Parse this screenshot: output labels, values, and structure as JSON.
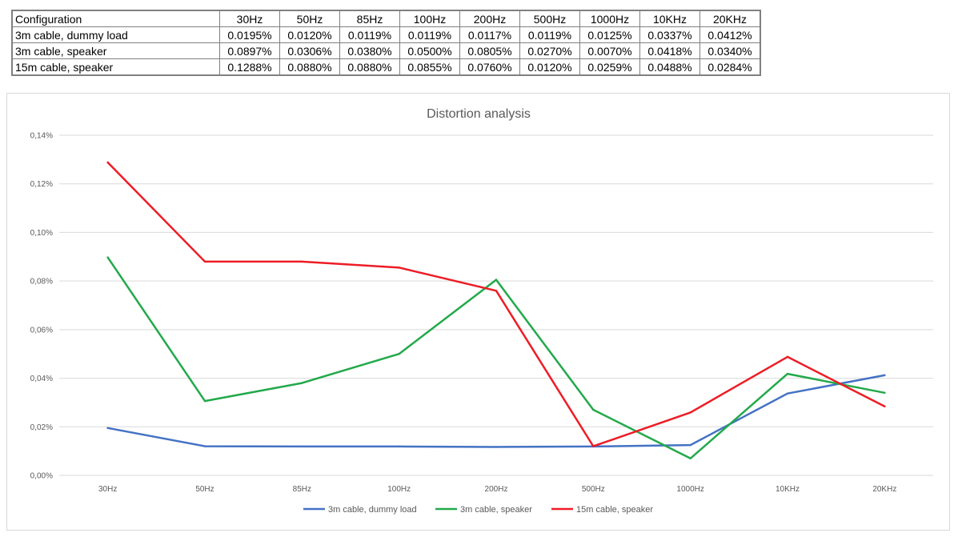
{
  "table": {
    "headers": [
      "Configuration",
      "30Hz",
      "50Hz",
      "85Hz",
      "100Hz",
      "200Hz",
      "500Hz",
      "1000Hz",
      "10KHz",
      "20KHz"
    ],
    "rows": [
      [
        "3m cable, dummy load",
        "0.0195%",
        "0.0120%",
        "0.0119%",
        "0.0119%",
        "0.0117%",
        "0.0119%",
        "0.0125%",
        "0.0337%",
        "0.0412%"
      ],
      [
        "3m cable, speaker",
        "0.0897%",
        "0.0306%",
        "0.0380%",
        "0.0500%",
        "0.0805%",
        "0.0270%",
        "0.0070%",
        "0.0418%",
        "0.0340%"
      ],
      [
        "15m cable, speaker",
        "0.1288%",
        "0.0880%",
        "0.0880%",
        "0.0855%",
        "0.0760%",
        "0.0120%",
        "0.0259%",
        "0.0488%",
        "0.0284%"
      ]
    ]
  },
  "chart_data": {
    "type": "line",
    "title": "Distortion analysis",
    "xlabel": "",
    "ylabel": "",
    "categories": [
      "30Hz",
      "50Hz",
      "85Hz",
      "100Hz",
      "200Hz",
      "500Hz",
      "1000Hz",
      "10KHz",
      "20KHz"
    ],
    "series": [
      {
        "name": "3m cable, dummy load",
        "color": "#4472c4",
        "values": [
          0.0195,
          0.012,
          0.0119,
          0.0119,
          0.0117,
          0.0119,
          0.0125,
          0.0337,
          0.0412
        ]
      },
      {
        "name": "3m cable, speaker",
        "color": "#22a94a",
        "values": [
          0.0897,
          0.0306,
          0.038,
          0.05,
          0.0805,
          0.027,
          0.007,
          0.0418,
          0.034
        ]
      },
      {
        "name": "15m cable, speaker",
        "color": "#ee1c25",
        "values": [
          0.1288,
          0.088,
          0.088,
          0.0855,
          0.076,
          0.012,
          0.0259,
          0.0488,
          0.0284
        ]
      }
    ],
    "ylim": [
      0,
      0.14
    ],
    "yticks": [
      0,
      0.02,
      0.04,
      0.06,
      0.08,
      0.1,
      0.12,
      0.14
    ],
    "ytick_labels": [
      "0,00%",
      "0,02%",
      "0,04%",
      "0,06%",
      "0,08%",
      "0,10%",
      "0,12%",
      "0,14%"
    ],
    "grid": true,
    "legend_position": "bottom"
  }
}
